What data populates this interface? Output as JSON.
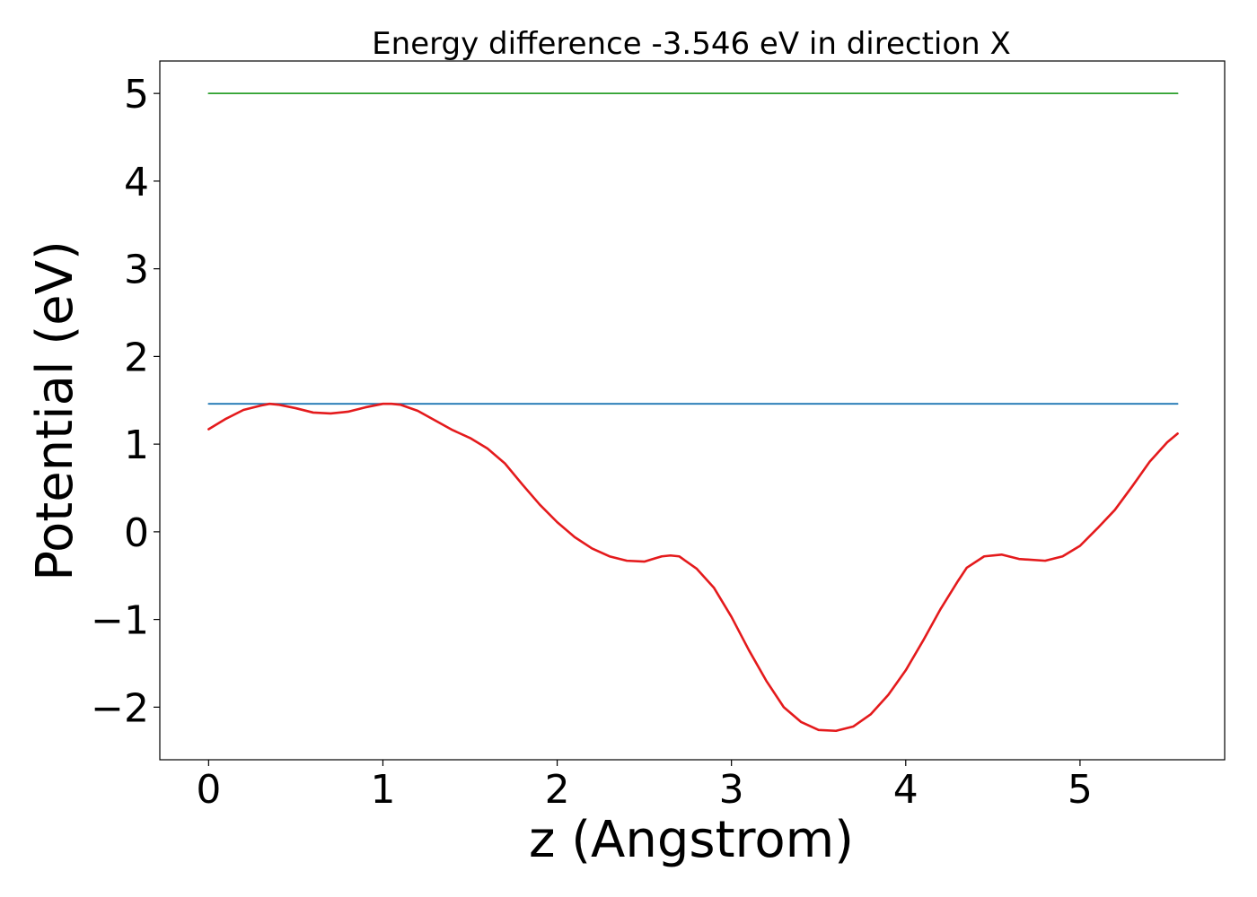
{
  "chart_data": {
    "type": "line",
    "title": "Energy difference -3.546 eV in direction X",
    "xlabel": "z (Angstrom)",
    "ylabel": "Potential (eV)",
    "xlim": [
      -0.28,
      5.83
    ],
    "ylim": [
      -2.6,
      5.37
    ],
    "xticks": [
      0,
      1,
      2,
      3,
      4,
      5
    ],
    "xtick_labels": [
      "0",
      "1",
      "2",
      "3",
      "4",
      "5"
    ],
    "yticks": [
      -2,
      -1,
      0,
      1,
      2,
      3,
      4,
      5
    ],
    "ytick_labels": [
      "−2",
      "−1",
      "0",
      "1",
      "2",
      "3",
      "4",
      "5"
    ],
    "grid": false,
    "series": [
      {
        "color": "#2ca02c",
        "x": [
          0,
          5.56
        ],
        "y": [
          5.0,
          5.0
        ]
      },
      {
        "color": "#1f77b4",
        "x": [
          0,
          5.56
        ],
        "y": [
          1.46,
          1.46
        ]
      },
      {
        "color": "#e41a1c",
        "x": [
          0,
          0.1,
          0.2,
          0.3,
          0.35,
          0.4,
          0.5,
          0.6,
          0.7,
          0.8,
          0.9,
          1.0,
          1.05,
          1.1,
          1.2,
          1.3,
          1.4,
          1.5,
          1.6,
          1.7,
          1.8,
          1.9,
          2.0,
          2.1,
          2.2,
          2.3,
          2.4,
          2.5,
          2.55,
          2.6,
          2.65,
          2.7,
          2.8,
          2.9,
          3.0,
          3.1,
          3.2,
          3.3,
          3.4,
          3.5,
          3.6,
          3.7,
          3.8,
          3.9,
          4.0,
          4.1,
          4.2,
          4.3,
          4.35,
          4.45,
          4.55,
          4.65,
          4.8,
          4.9,
          5.0,
          5.1,
          5.2,
          5.3,
          5.4,
          5.5,
          5.56
        ],
        "y": [
          1.17,
          1.29,
          1.39,
          1.44,
          1.46,
          1.45,
          1.41,
          1.36,
          1.35,
          1.37,
          1.42,
          1.46,
          1.46,
          1.45,
          1.38,
          1.27,
          1.16,
          1.07,
          0.95,
          0.78,
          0.54,
          0.31,
          0.11,
          -0.06,
          -0.19,
          -0.28,
          -0.33,
          -0.34,
          -0.31,
          -0.28,
          -0.27,
          -0.28,
          -0.42,
          -0.64,
          -0.97,
          -1.35,
          -1.7,
          -2.0,
          -2.17,
          -2.26,
          -2.27,
          -2.22,
          -2.08,
          -1.86,
          -1.58,
          -1.24,
          -0.88,
          -0.56,
          -0.41,
          -0.28,
          -0.26,
          -0.31,
          -0.33,
          -0.28,
          -0.16,
          0.04,
          0.25,
          0.52,
          0.8,
          1.02,
          1.12
        ]
      }
    ]
  }
}
